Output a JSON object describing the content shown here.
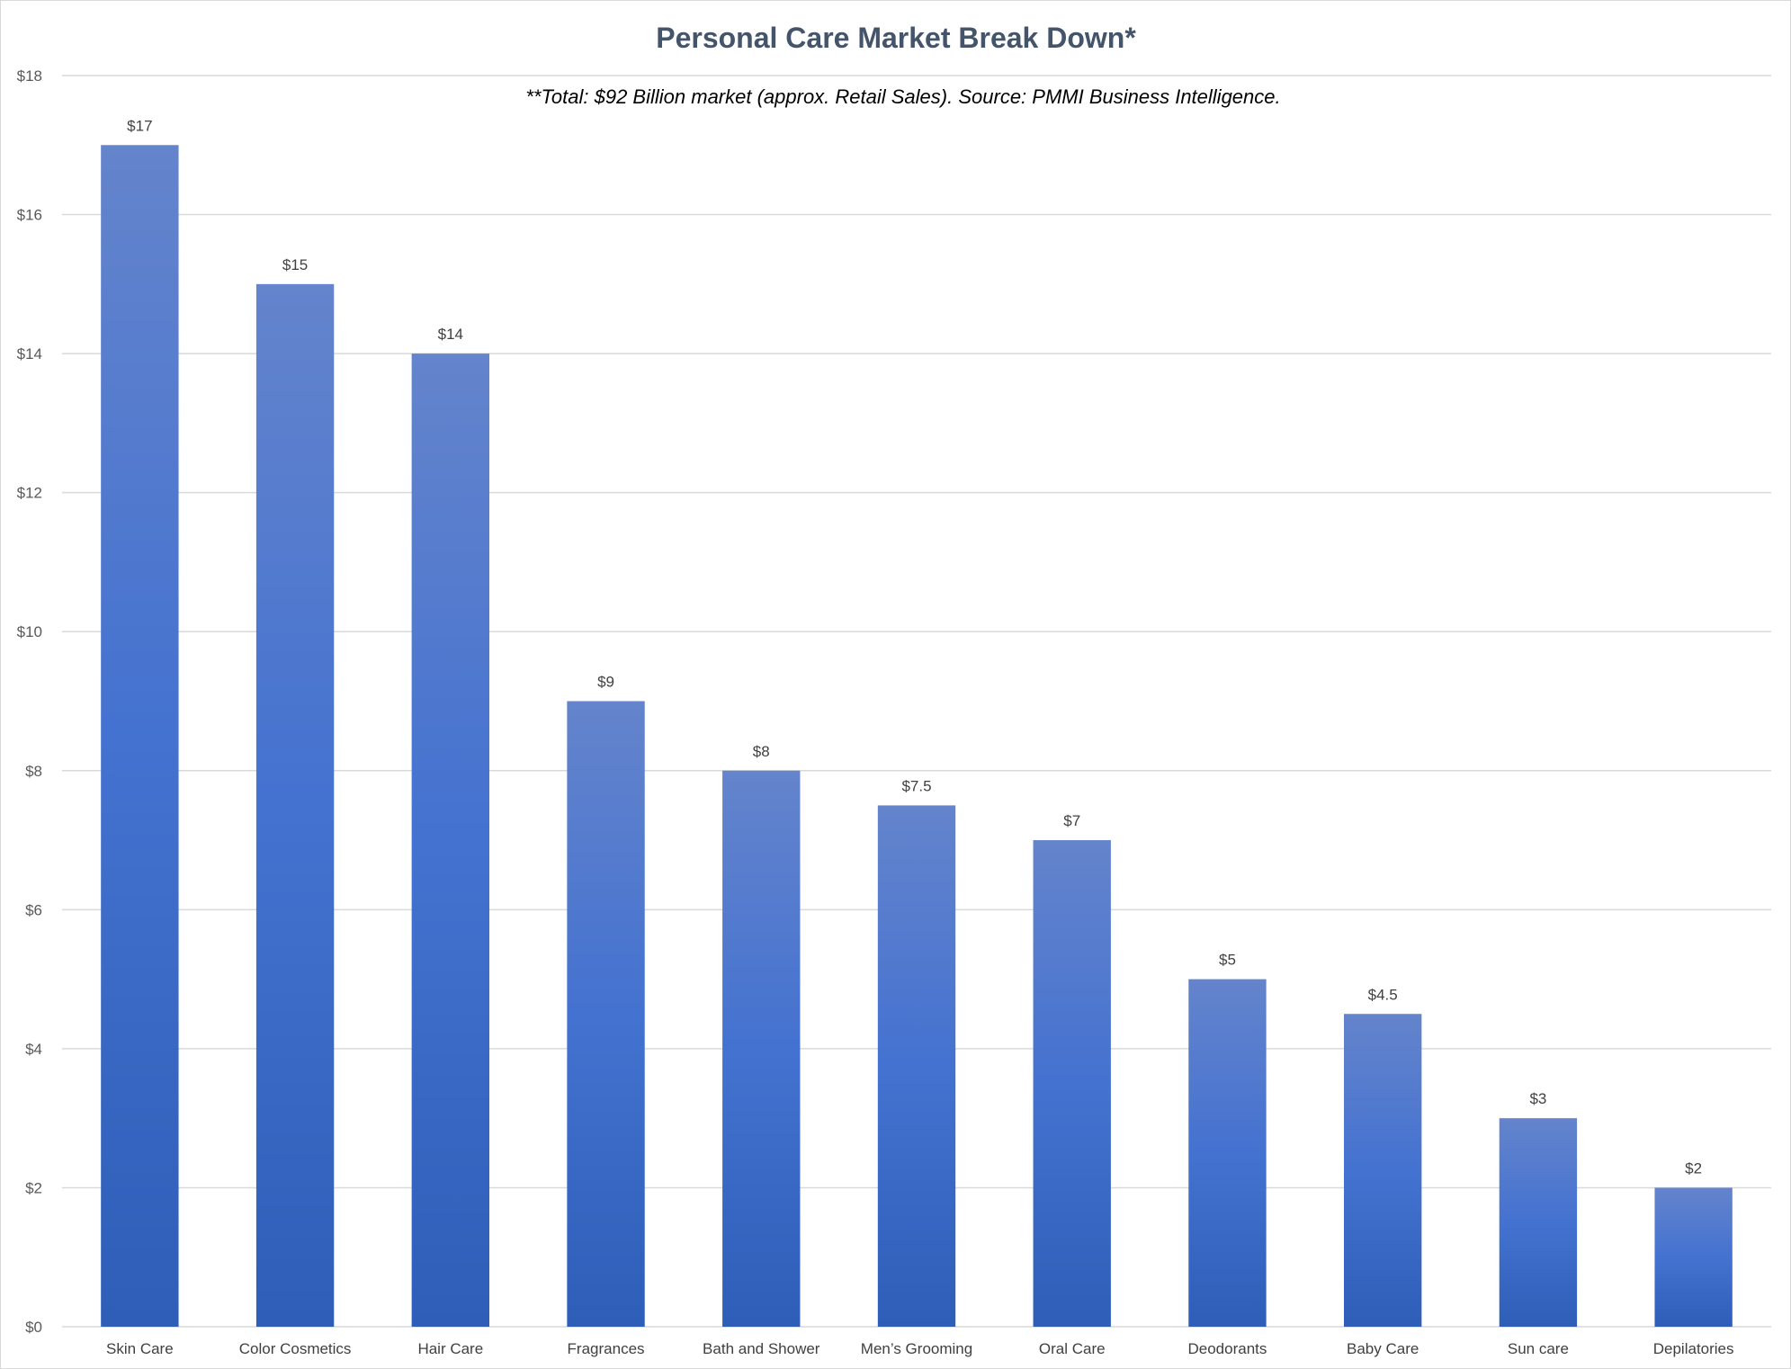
{
  "chart_data": {
    "type": "bar",
    "title": "Personal Care Market Break Down*",
    "subtitle": "**Total: $92 Billion market (approx. Retail Sales). Source:  PMMI Business Intelligence.",
    "categories": [
      "Skin Care",
      "Color Cosmetics",
      "Hair Care",
      "Fragrances",
      "Bath and Shower",
      "Men’s Grooming",
      "Oral Care",
      "Deodorants",
      "Baby Care",
      "Sun care",
      "Depilatories"
    ],
    "values": [
      17,
      15,
      14,
      9,
      8,
      7.5,
      7,
      5,
      4.5,
      3,
      2
    ],
    "data_labels": [
      "$17",
      "$15",
      "$14",
      "$9",
      "$8",
      "$7.5",
      "$7",
      "$5",
      "$4.5",
      "$3",
      "$2"
    ],
    "y_ticks": [
      0,
      2,
      4,
      6,
      8,
      10,
      12,
      14,
      16,
      18
    ],
    "y_tick_labels": [
      "$0",
      "$2",
      "$4",
      "$6",
      "$8",
      "$10",
      "$12",
      "$14",
      "$16",
      "$18"
    ],
    "ylim": [
      0,
      18
    ],
    "xlabel": "",
    "ylabel": "",
    "grid": true,
    "legend": "none",
    "colors": {
      "bar_top": "#6484cc",
      "bar_mid": "#4472d0",
      "bar_bottom": "#2e5eb8",
      "title": "#44546a"
    }
  }
}
